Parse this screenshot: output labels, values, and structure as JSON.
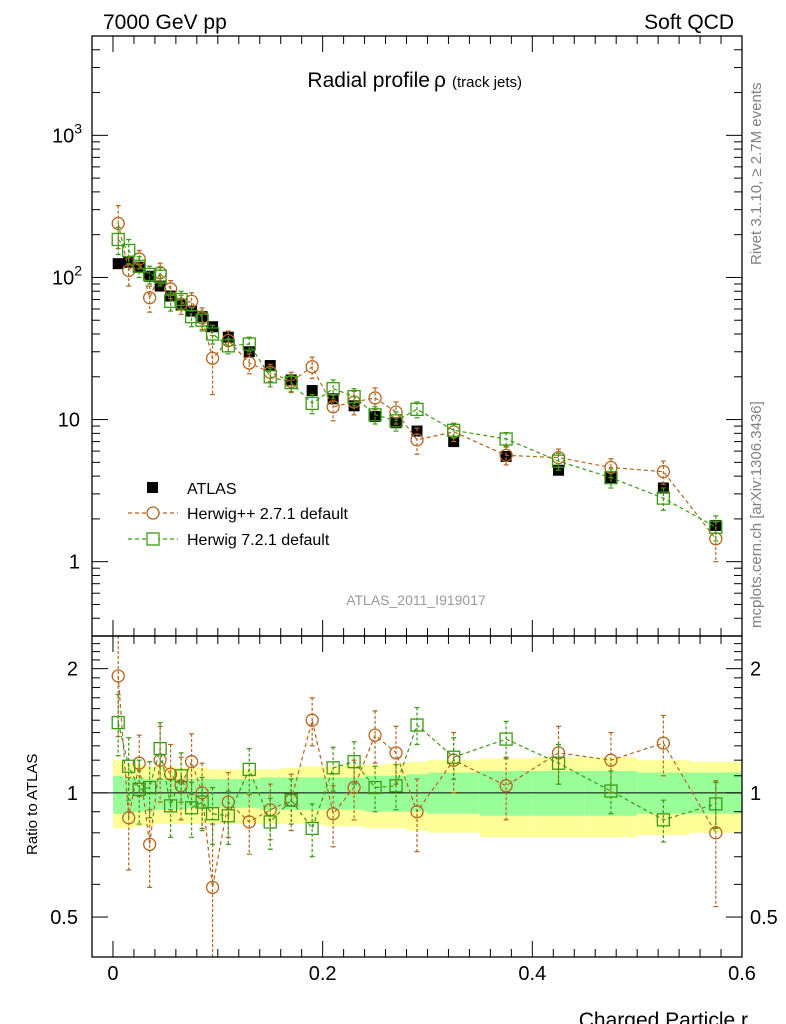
{
  "header": {
    "left": "7000 GeV pp",
    "right": "Soft QCD"
  },
  "side_labels": {
    "rivet": "Rivet 3.1.10, ≥ 2.7M events",
    "mcplots": "mcplots.cern.ch [arXiv:1306.3436]"
  },
  "colors": {
    "atlas": "#000000",
    "herwigpp": "#b5651d",
    "herwig7": "#3a9a14",
    "band_inner": "#99ff99",
    "band_outer": "#ffff99"
  },
  "chart_data": [
    {
      "type": "scatter",
      "title": "Radial profile",
      "title_symbol": "ρ",
      "title_suffix": "(track jets)",
      "analysis_id": "ATLAS_2011_I919017",
      "xlabel": "Charged Particle r",
      "ylabel": "",
      "xlim": [
        -0.02,
        0.6
      ],
      "ylim": [
        0.3,
        5000
      ],
      "yscale": "log",
      "ytick_labels": [
        "1",
        "10",
        "10^2",
        "10^3"
      ],
      "legend": {
        "position": "lower-left"
      },
      "x": [
        0.005,
        0.015,
        0.025,
        0.035,
        0.045,
        0.055,
        0.065,
        0.075,
        0.085,
        0.095,
        0.11,
        0.13,
        0.15,
        0.17,
        0.19,
        0.21,
        0.23,
        0.25,
        0.27,
        0.29,
        0.325,
        0.375,
        0.425,
        0.475,
        0.525,
        0.575
      ],
      "series": [
        {
          "name": "ATLAS",
          "marker": "filled-square",
          "values": [
            125,
            128,
            118,
            102,
            87,
            74,
            64,
            58,
            53,
            45,
            38,
            30,
            24,
            19,
            16,
            14,
            12.5,
            10.5,
            9.5,
            8.3,
            7.0,
            5.5,
            4.4,
            3.9,
            3.3,
            1.8
          ]
        },
        {
          "name": "Herwig++ 2.7.1 default",
          "marker": "open-circle",
          "values": [
            240,
            112,
            135,
            72,
            108,
            83,
            65,
            68,
            52,
            27,
            36,
            25,
            21.5,
            18.5,
            23.5,
            12.3,
            13.3,
            14.2,
            11.3,
            7.2,
            8.2,
            5.6,
            5.4,
            4.6,
            4.3,
            1.45
          ],
          "errors": [
            80,
            25,
            20,
            15,
            18,
            12,
            10,
            10,
            9,
            12,
            6,
            4,
            3,
            3,
            4,
            2.5,
            2.5,
            2.5,
            2,
            1.5,
            1.2,
            0.8,
            0.8,
            0.7,
            0.8,
            0.45
          ]
        },
        {
          "name": "Herwig 7.2.1 default",
          "marker": "open-square",
          "values": [
            185,
            155,
            120,
            105,
            102,
            68,
            70,
            53,
            50,
            40,
            33,
            34,
            20,
            18.2,
            13,
            16.5,
            14.5,
            10.8,
            9.8,
            11.8,
            8.4,
            7.3,
            5.1,
            3.9,
            2.8,
            1.75
          ],
          "errors": [
            40,
            30,
            20,
            15,
            15,
            10,
            10,
            8,
            8,
            6,
            4,
            4,
            3,
            2.5,
            2,
            2.5,
            2,
            1.5,
            1.5,
            1.5,
            1,
            0.8,
            0.7,
            0.6,
            0.5,
            0.35
          ]
        }
      ]
    },
    {
      "type": "scatter",
      "title": "",
      "xlabel": "Charged Particle r",
      "ylabel": "Ratio to ATLAS",
      "xlim": [
        -0.02,
        0.6
      ],
      "ylim": [
        0.4,
        2.4
      ],
      "yscale": "log",
      "ytick_labels": [
        "0.5",
        "1",
        "2"
      ],
      "xtick_labels": [
        "0",
        "0.2",
        "0.4",
        "0.6"
      ],
      "reference_line": 1,
      "bands": {
        "x_edges": [
          0,
          0.01,
          0.02,
          0.03,
          0.04,
          0.05,
          0.06,
          0.07,
          0.08,
          0.09,
          0.1,
          0.12,
          0.14,
          0.16,
          0.18,
          0.2,
          0.22,
          0.24,
          0.26,
          0.28,
          0.3,
          0.35,
          0.4,
          0.45,
          0.5,
          0.55,
          0.6
        ],
        "inner_lo": [
          0.89,
          0.89,
          0.9,
          0.9,
          0.91,
          0.91,
          0.91,
          0.92,
          0.92,
          0.92,
          0.92,
          0.92,
          0.91,
          0.91,
          0.91,
          0.91,
          0.91,
          0.9,
          0.9,
          0.9,
          0.89,
          0.88,
          0.88,
          0.88,
          0.89,
          0.89
        ],
        "inner_hi": [
          1.1,
          1.09,
          1.09,
          1.08,
          1.08,
          1.08,
          1.08,
          1.08,
          1.08,
          1.08,
          1.08,
          1.08,
          1.09,
          1.09,
          1.09,
          1.09,
          1.09,
          1.1,
          1.1,
          1.11,
          1.12,
          1.13,
          1.13,
          1.13,
          1.12,
          1.12
        ],
        "outer_lo": [
          0.82,
          0.82,
          0.83,
          0.83,
          0.84,
          0.84,
          0.84,
          0.84,
          0.84,
          0.84,
          0.84,
          0.84,
          0.84,
          0.84,
          0.84,
          0.83,
          0.83,
          0.82,
          0.82,
          0.81,
          0.8,
          0.78,
          0.78,
          0.78,
          0.79,
          0.8
        ],
        "outer_hi": [
          1.2,
          1.18,
          1.17,
          1.16,
          1.16,
          1.16,
          1.15,
          1.15,
          1.15,
          1.14,
          1.14,
          1.14,
          1.14,
          1.15,
          1.16,
          1.16,
          1.17,
          1.17,
          1.18,
          1.19,
          1.2,
          1.21,
          1.22,
          1.22,
          1.2,
          1.19
        ]
      },
      "x": [
        0.005,
        0.015,
        0.025,
        0.035,
        0.045,
        0.055,
        0.065,
        0.075,
        0.085,
        0.095,
        0.11,
        0.13,
        0.15,
        0.17,
        0.19,
        0.21,
        0.23,
        0.25,
        0.27,
        0.29,
        0.325,
        0.375,
        0.425,
        0.475,
        0.525,
        0.575
      ],
      "series": [
        {
          "name": "Herwig++ 2.7.1 default",
          "marker": "open-circle",
          "values": [
            1.92,
            0.87,
            1.18,
            0.75,
            1.2,
            1.11,
            1.04,
            1.19,
            1.0,
            0.59,
            0.95,
            0.85,
            0.91,
            0.96,
            1.5,
            0.89,
            1.03,
            1.38,
            1.25,
            0.9,
            1.2,
            1.04,
            1.25,
            1.2,
            1.32,
            0.8
          ],
          "errors": [
            0.55,
            0.22,
            0.2,
            0.16,
            0.25,
            0.2,
            0.18,
            0.2,
            0.18,
            0.25,
            0.17,
            0.14,
            0.14,
            0.15,
            0.2,
            0.15,
            0.17,
            0.2,
            0.2,
            0.18,
            0.2,
            0.18,
            0.2,
            0.2,
            0.22,
            0.27
          ]
        },
        {
          "name": "Herwig 7.2.1 default",
          "marker": "open-square",
          "values": [
            1.48,
            1.16,
            1.02,
            1.03,
            1.28,
            0.93,
            1.1,
            0.92,
            0.95,
            0.89,
            0.88,
            1.14,
            0.85,
            0.96,
            0.82,
            1.15,
            1.19,
            1.03,
            1.04,
            1.46,
            1.22,
            1.35,
            1.18,
            1.01,
            0.86,
            0.94
          ],
          "errors": [
            0.25,
            0.2,
            0.18,
            0.16,
            0.2,
            0.15,
            0.15,
            0.14,
            0.14,
            0.14,
            0.13,
            0.14,
            0.12,
            0.12,
            0.12,
            0.14,
            0.14,
            0.13,
            0.13,
            0.15,
            0.14,
            0.14,
            0.13,
            0.12,
            0.1,
            0.12
          ]
        }
      ]
    }
  ]
}
